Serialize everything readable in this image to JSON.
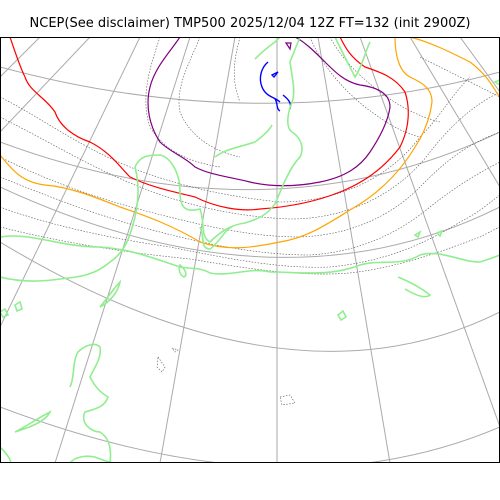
{
  "title": "NCEP(See disclaimer) TMP500 2025/12/04 12Z FT=132 (init 2900Z)",
  "colors": {
    "graticule": "#aaaaaa",
    "coastline": "#90ee90",
    "minor_isotherm": "#555555",
    "isotherm_orange": "#ffa500",
    "isotherm_red": "#ff0000",
    "isotherm_purple": "#800080",
    "isotherm_blue": "#0000ff",
    "frame": "#000000"
  }
}
